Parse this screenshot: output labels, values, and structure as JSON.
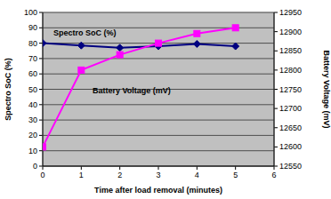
{
  "chart_data": {
    "type": "line",
    "x_label": "Time after load removal (minutes)",
    "y_label": "Spectro SoC (%)",
    "y2_label": "Battery Voltage (mV)",
    "x": [
      0,
      1,
      2,
      3,
      4,
      5
    ],
    "xlim": [
      0,
      6
    ],
    "xticks": [
      0,
      1,
      2,
      3,
      4,
      5,
      6
    ],
    "ylim": [
      0,
      100
    ],
    "yticks": [
      0,
      10,
      20,
      30,
      40,
      50,
      60,
      70,
      80,
      90,
      100
    ],
    "y2lim": [
      12550,
      12950
    ],
    "y2ticks": [
      12550,
      12600,
      12650,
      12700,
      12750,
      12800,
      12850,
      12900,
      12950
    ],
    "grid": true,
    "series": [
      {
        "name": "Spectro SoC (%)",
        "color": "#000080",
        "marker": "diamond",
        "values": [
          80,
          78.5,
          77,
          78,
          79.5,
          78
        ]
      },
      {
        "name": "Battery Voltage (mV)",
        "color": "#ff00ff",
        "marker": "square",
        "axis": "y2",
        "values": [
          12600,
          12800,
          12840,
          12870,
          12895,
          12910
        ]
      }
    ]
  }
}
